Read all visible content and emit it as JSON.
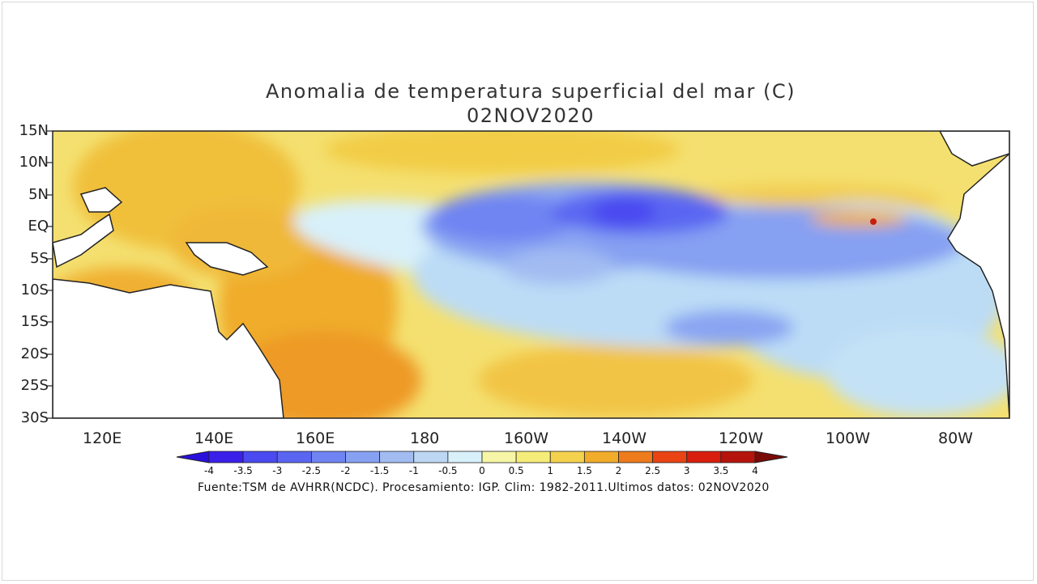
{
  "title": "Anomalia de temperatura superficial del mar (C)",
  "date": "02NOV2020",
  "lat_labels": [
    "15N",
    "10N",
    "5N",
    "EQ",
    "5S",
    "10S",
    "15S",
    "20S",
    "25S",
    "30S"
  ],
  "lon_labels": [
    "120E",
    "140E",
    "160E",
    "180",
    "160W",
    "140W",
    "120W",
    "100W",
    "80W"
  ],
  "colorbar": {
    "labels": [
      "-4",
      "-3.5",
      "-3",
      "-2.5",
      "-2",
      "-1.5",
      "-1",
      "-0.5",
      "0",
      "0.5",
      "1",
      "1.5",
      "2",
      "2.5",
      "3",
      "3.5",
      "4"
    ],
    "colors": [
      "#3a20e8",
      "#4a4af0",
      "#5a66f2",
      "#6f84f2",
      "#86a0f2",
      "#a2bcf2",
      "#bcd6f4",
      "#d8f0fa",
      "#f6f6a6",
      "#f6ec7a",
      "#f4d24e",
      "#f0ac2a",
      "#ee7b1c",
      "#ea4414",
      "#d81e0e",
      "#b4140c"
    ]
  },
  "source": "Fuente:TSM de AVHRR(NCDC). Procesamiento: IGP. Clim: 1982-2011.Ultimos datos: 02NOV2020"
}
